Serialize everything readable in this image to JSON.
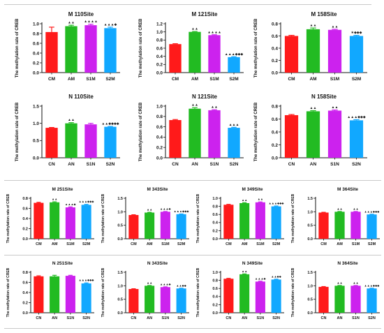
{
  "y_axis_label": "The methylation rate of CREB",
  "colors": {
    "bar1": "#ff1a1a",
    "bar2": "#22bb22",
    "bar3": "#cc22ee",
    "bar4": "#11a8ff",
    "marker": "#222222"
  },
  "chart_data": [
    {
      "type": "bar",
      "title": "M 110Site",
      "ylabel": "The methylation rate of CREB",
      "categories": [
        "CM",
        "AM",
        "S1M",
        "S2M"
      ],
      "values": [
        0.83,
        0.95,
        0.97,
        0.91
      ],
      "errors": [
        0.1,
        0.02,
        0.02,
        0.02
      ],
      "markers": [
        "",
        "▲▲",
        "▲▲▲▲",
        "▲▲▲◆"
      ],
      "ylim": [
        0,
        1.0
      ],
      "yticks": [
        "0.0",
        "0.2",
        "0.4",
        "0.6",
        "0.8",
        "1.0"
      ]
    },
    {
      "type": "bar",
      "title": "M 121Site",
      "ylabel": "The methylation rate of CREB",
      "categories": [
        "CM",
        "AM",
        "S1M",
        "S2M"
      ],
      "values": [
        0.7,
        1.0,
        0.92,
        0.38
      ],
      "errors": [
        0.01,
        0.01,
        0.01,
        0.01
      ],
      "markers": [
        "",
        "▲▲",
        "▲▲▲▲",
        "▲▲▲◆◆◆"
      ],
      "ylim": [
        0,
        1.2
      ],
      "yticks": [
        "0.0",
        "0.2",
        "0.4",
        "0.6",
        "0.8",
        "1.0",
        "1.2"
      ]
    },
    {
      "type": "bar",
      "title": "M 158Site",
      "ylabel": "The methylation rate of CREB",
      "categories": [
        "CM",
        "AM",
        "S1M",
        "S2M"
      ],
      "values": [
        0.6,
        0.71,
        0.7,
        0.6
      ],
      "errors": [
        0.01,
        0.02,
        0.01,
        0.01
      ],
      "markers": [
        "",
        "▲▲",
        "▲▲",
        "★◆◆◆"
      ],
      "ylim": [
        0,
        0.8
      ],
      "yticks": [
        "0.0",
        "0.2",
        "0.4",
        "0.6",
        "0.8"
      ]
    },
    {
      "type": "bar",
      "title": "N 110Site",
      "ylabel": "The methylation rate of CREB",
      "categories": [
        "CN",
        "AN",
        "S1N",
        "S2N"
      ],
      "values": [
        0.87,
        1.0,
        0.97,
        0.9
      ],
      "errors": [
        0.01,
        0.02,
        0.03,
        0.01
      ],
      "markers": [
        "",
        "▲▲",
        "",
        "▲▲◆◆◆◆"
      ],
      "ylim": [
        0,
        1.5
      ],
      "yticks": [
        "0.0",
        "0.5",
        "1.0",
        "1.5"
      ]
    },
    {
      "type": "bar",
      "title": "N 121Site",
      "ylabel": "The methylation rate of CREB",
      "categories": [
        "CN",
        "AN",
        "S1N",
        "S2N"
      ],
      "values": [
        0.73,
        0.95,
        0.92,
        0.58
      ],
      "errors": [
        0.01,
        0.02,
        0.01,
        0.01
      ],
      "markers": [
        "",
        "▲▲",
        "▲▲",
        "▲▲▲"
      ],
      "ylim": [
        0,
        1.0
      ],
      "yticks": [
        "0.0",
        "0.2",
        "0.4",
        "0.6",
        "0.8",
        "1.0"
      ]
    },
    {
      "type": "bar",
      "title": "N 158Site",
      "ylabel": "The methylation rate of CREB",
      "categories": [
        "CN",
        "AN",
        "S1N",
        "S2N"
      ],
      "values": [
        0.66,
        0.72,
        0.73,
        0.58
      ],
      "errors": [
        0.01,
        0.01,
        0.01,
        0.01
      ],
      "markers": [
        "",
        "▲▲",
        "▲▲",
        "▲▲▲◆◆◆"
      ],
      "ylim": [
        0,
        0.8
      ],
      "yticks": [
        "0.0",
        "0.2",
        "0.4",
        "0.6",
        "0.8"
      ]
    },
    {
      "type": "bar",
      "title": "M 251Site",
      "ylabel": "The methylation rate of CREB",
      "categories": [
        "CM",
        "AM",
        "S1M",
        "S2M"
      ],
      "values": [
        0.71,
        0.72,
        0.62,
        0.67
      ],
      "errors": [
        0.01,
        0.01,
        0.01,
        0.01
      ],
      "markers": [
        "",
        "▲▲",
        "▲▲▲◆",
        "▲▲▲◆◆◆"
      ],
      "ylim": [
        0,
        0.8
      ],
      "yticks": [
        "0.0",
        "0.2",
        "0.4",
        "0.6",
        "0.8"
      ]
    },
    {
      "type": "bar",
      "title": "M 343Site",
      "ylabel": "The methylation rate of CREB",
      "categories": [
        "CM",
        "AM",
        "S1M",
        "S2M"
      ],
      "values": [
        0.88,
        0.97,
        1.0,
        0.91
      ],
      "errors": [
        0.01,
        0.01,
        0.01,
        0.01
      ],
      "markers": [
        "",
        "▲▲",
        "▲▲▲◆",
        "▲▲▲◆◆◆"
      ],
      "ylim": [
        0,
        1.5
      ],
      "yticks": [
        "0.0",
        "0.5",
        "1.0",
        "1.5"
      ]
    },
    {
      "type": "bar",
      "title": "M 349Site",
      "ylabel": "The methylation rate of CREB",
      "categories": [
        "CM",
        "AM",
        "S1M",
        "S2M"
      ],
      "values": [
        0.84,
        0.88,
        0.9,
        0.8
      ],
      "errors": [
        0.01,
        0.01,
        0.01,
        0.01
      ],
      "markers": [
        "",
        "▲▲",
        "▲▲",
        "▲▲▲◆◆◆"
      ],
      "ylim": [
        0,
        1.0
      ],
      "yticks": [
        "0.0",
        "0.2",
        "0.4",
        "0.6",
        "0.8",
        "1.0"
      ]
    },
    {
      "type": "bar",
      "title": "M 364Site",
      "ylabel": "The methylation rate of CREB",
      "categories": [
        "CM",
        "AM",
        "S1M",
        "S2M"
      ],
      "values": [
        0.97,
        1.0,
        1.0,
        0.9
      ],
      "errors": [
        0.01,
        0.01,
        0.01,
        0.01
      ],
      "markers": [
        "",
        "▲▲",
        "▲▲",
        "▲▲▲◆◆◆"
      ],
      "ylim": [
        0,
        1.5
      ],
      "yticks": [
        "0.0",
        "0.5",
        "1.0",
        "1.5"
      ]
    },
    {
      "type": "bar",
      "title": "N 251Site",
      "ylabel": "The methylation rate of CREB",
      "categories": [
        "CN",
        "AN",
        "S1N",
        "S2N"
      ],
      "values": [
        0.72,
        0.72,
        0.73,
        0.58
      ],
      "errors": [
        0.01,
        0.02,
        0.01,
        0.01
      ],
      "markers": [
        "",
        "",
        "",
        "▲▲▲◆◆◆"
      ],
      "ylim": [
        0,
        0.8
      ],
      "yticks": [
        "0.0",
        "0.2",
        "0.4",
        "0.6",
        "0.8"
      ]
    },
    {
      "type": "bar",
      "title": "N 343Site",
      "ylabel": "The methylation rate of CREB",
      "categories": [
        "CN",
        "AN",
        "S1N",
        "S2N"
      ],
      "values": [
        0.88,
        1.0,
        0.95,
        0.9
      ],
      "errors": [
        0.01,
        0.01,
        0.01,
        0.01
      ],
      "markers": [
        "",
        "▲▲",
        "▲▲▲◆",
        "▲▲◆◆"
      ],
      "ylim": [
        0,
        1.5
      ],
      "yticks": [
        "0.0",
        "0.5",
        "1.0",
        "1.5"
      ]
    },
    {
      "type": "bar",
      "title": "N 349Site",
      "ylabel": "The methylation rate of CREB",
      "categories": [
        "CN",
        "AN",
        "S1N",
        "S2N"
      ],
      "values": [
        0.84,
        0.95,
        0.77,
        0.82
      ],
      "errors": [
        0.01,
        0.01,
        0.01,
        0.01
      ],
      "markers": [
        "",
        "▲▲",
        "▲▲▲◆",
        "▲▲◆◆"
      ],
      "ylim": [
        0,
        1.0
      ],
      "yticks": [
        "0.0",
        "0.2",
        "0.4",
        "0.6",
        "0.8",
        "1.0"
      ]
    },
    {
      "type": "bar",
      "title": "N 364Site",
      "ylabel": "The methylation rate of CREB",
      "categories": [
        "CN",
        "AN",
        "S1N",
        "S2N"
      ],
      "values": [
        0.96,
        1.0,
        1.0,
        0.9
      ],
      "errors": [
        0.01,
        0.01,
        0.01,
        0.01
      ],
      "markers": [
        "",
        "▲▲",
        "▲▲",
        "▲▲▲◆◆◆"
      ],
      "ylim": [
        0,
        1.5
      ],
      "yticks": [
        "0.0",
        "0.5",
        "1.0",
        "1.5"
      ]
    }
  ]
}
